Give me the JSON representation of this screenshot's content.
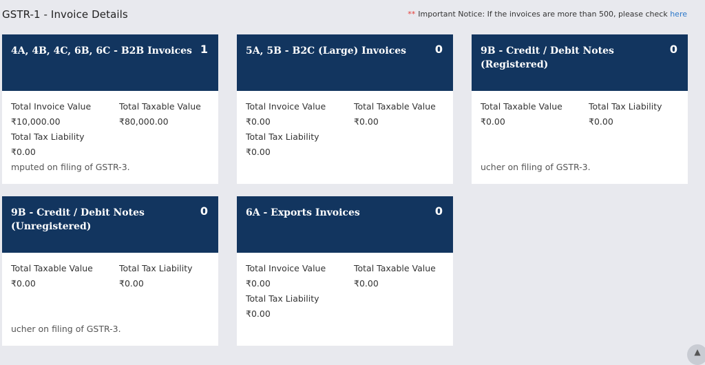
{
  "page": {
    "title": "GSTR-1 - Invoice Details",
    "notice": {
      "stars": "**",
      "text": "Important Notice: If the invoices are more than 500, please check",
      "link": "here"
    }
  },
  "cards": [
    {
      "title": "4A, 4B, 4C, 6B, 6C - B2B Invoices",
      "count": "1",
      "labels": [
        "Total Invoice Value",
        "Total Taxable Value",
        "Total Tax Liability"
      ],
      "values": [
        "₹10,000.00",
        "₹80,000.00",
        "₹0.00"
      ],
      "footnote": "mputed on filing of GSTR-3."
    },
    {
      "title": "5A, 5B - B2C (Large) Invoices",
      "count": "0",
      "labels": [
        "Total Invoice Value",
        "Total Taxable Value",
        "Total Tax Liability"
      ],
      "values": [
        "₹0.00",
        "₹0.00",
        "₹0.00"
      ]
    },
    {
      "title": "9B - Credit / Debit Notes (Registered)",
      "count": "0",
      "labels": [
        "Total Taxable Value",
        "Total Tax Liability"
      ],
      "values": [
        "₹0.00",
        "₹0.00"
      ],
      "footnote": "ucher on filing of GSTR-3."
    },
    {
      "title": "9B - Credit / Debit Notes (Unregistered)",
      "count": "0",
      "labels": [
        "Total Taxable Value",
        "Total Tax Liability"
      ],
      "values": [
        "₹0.00",
        "₹0.00"
      ],
      "footnote": "ucher on filing of GSTR-3."
    },
    {
      "title": "6A - Exports Invoices",
      "count": "0",
      "labels": [
        "Total Invoice Value",
        "Total Taxable Value",
        "Total Tax Liability"
      ],
      "values": [
        "₹0.00",
        "₹0.00",
        "₹0.00"
      ]
    }
  ],
  "icons": {
    "scroll_up": "chevron-up-icon"
  }
}
